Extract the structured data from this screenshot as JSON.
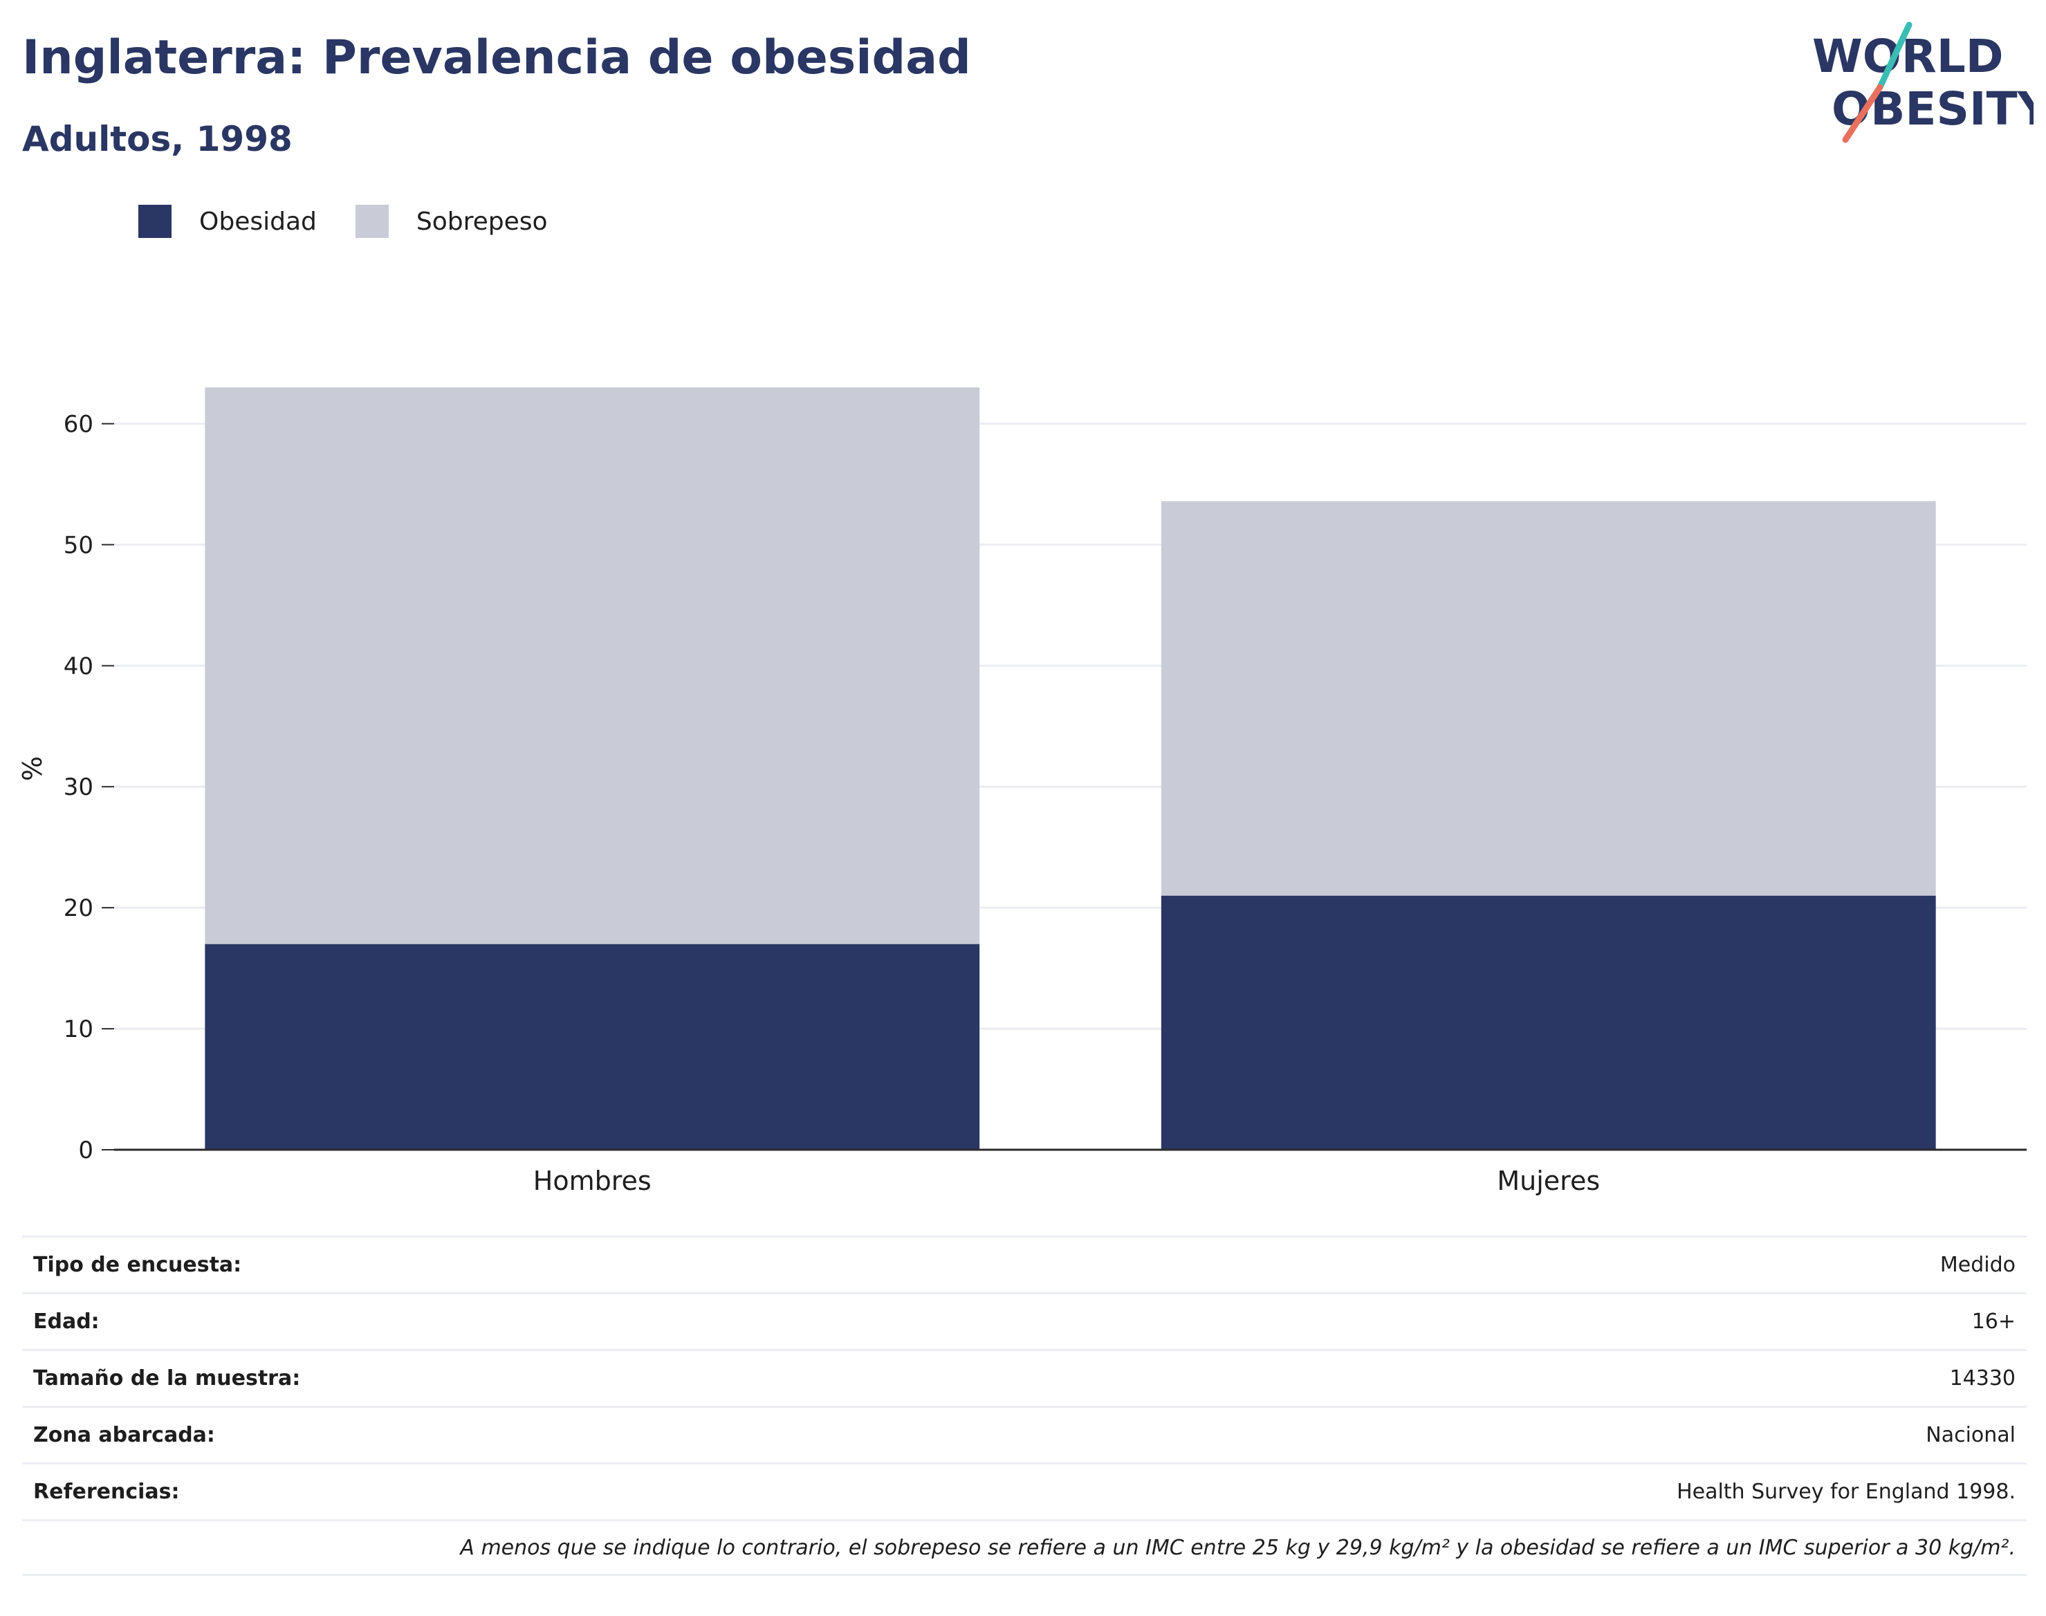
{
  "header": {
    "title": "Inglaterra: Prevalencia de obesidad",
    "subtitle": "Adultos, 1998"
  },
  "logo": {
    "line1": "WORLD",
    "line2": "OBESITY",
    "accent_teal": "#3bbdb5",
    "accent_coral": "#e8705e",
    "text_color": "#2a3663"
  },
  "legend": {
    "items": [
      {
        "label": "Obesidad",
        "color": "#2a3663"
      },
      {
        "label": "Sobrepeso",
        "color": "#c9cbd7"
      }
    ]
  },
  "chart_data": {
    "type": "bar",
    "stacked": true,
    "categories": [
      "Hombres",
      "Mujeres"
    ],
    "series": [
      {
        "name": "Obesidad",
        "values": [
          17,
          21
        ],
        "color": "#2a3663"
      },
      {
        "name": "Sobrepeso",
        "values": [
          46,
          32.6
        ],
        "color": "#c9cbd7"
      }
    ],
    "ylabel": "%",
    "ylim": [
      0,
      63
    ],
    "yticks": [
      0,
      10,
      20,
      30,
      40,
      50,
      60
    ],
    "grid": true,
    "legend_position": "top-left"
  },
  "info": {
    "rows": [
      {
        "key": "Tipo de encuesta:",
        "value": "Medido"
      },
      {
        "key": "Edad:",
        "value": "16+"
      },
      {
        "key": "Tamaño de la muestra:",
        "value": "14330"
      },
      {
        "key": "Zona abarcada:",
        "value": "Nacional"
      },
      {
        "key": "Referencias:",
        "value": "Health Survey for England 1998."
      }
    ],
    "note": "A menos que se indique lo contrario, el sobrepeso se refiere a un IMC entre 25 kg y 29,9 kg/m² y la obesidad se refiere a un IMC superior a 30 kg/m²."
  }
}
